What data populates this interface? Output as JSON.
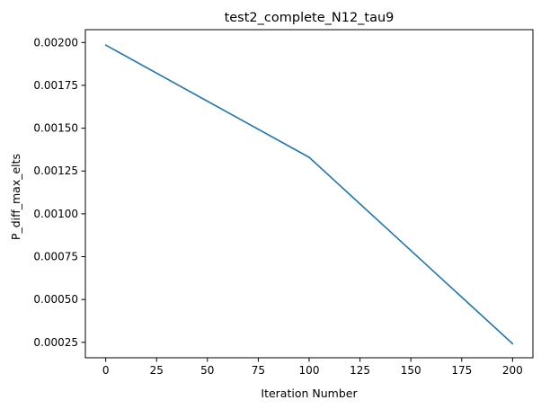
{
  "chart_data": {
    "type": "line",
    "title": "test2_complete_N12_tau9",
    "xlabel": "Iteration Number",
    "ylabel": "P_diff_max_elts",
    "xlim": [
      -10,
      210
    ],
    "ylim": [
      0.00016,
      0.002075
    ],
    "xticks": [
      0,
      25,
      50,
      75,
      100,
      125,
      150,
      175,
      200
    ],
    "xtick_labels": [
      "0",
      "25",
      "50",
      "75",
      "100",
      "125",
      "150",
      "175",
      "200"
    ],
    "yticks": [
      0.00025,
      0.0005,
      0.00075,
      0.001,
      0.00125,
      0.0015,
      0.00175,
      0.002
    ],
    "ytick_labels": [
      "0.00025",
      "0.00050",
      "0.00075",
      "0.00100",
      "0.00125",
      "0.00150",
      "0.00175",
      "0.00200"
    ],
    "grid": false,
    "series": [
      {
        "color": "#1f77b4",
        "x": [
          0,
          100,
          200
        ],
        "y": [
          0.001985,
          0.00133,
          0.000242
        ]
      }
    ]
  }
}
